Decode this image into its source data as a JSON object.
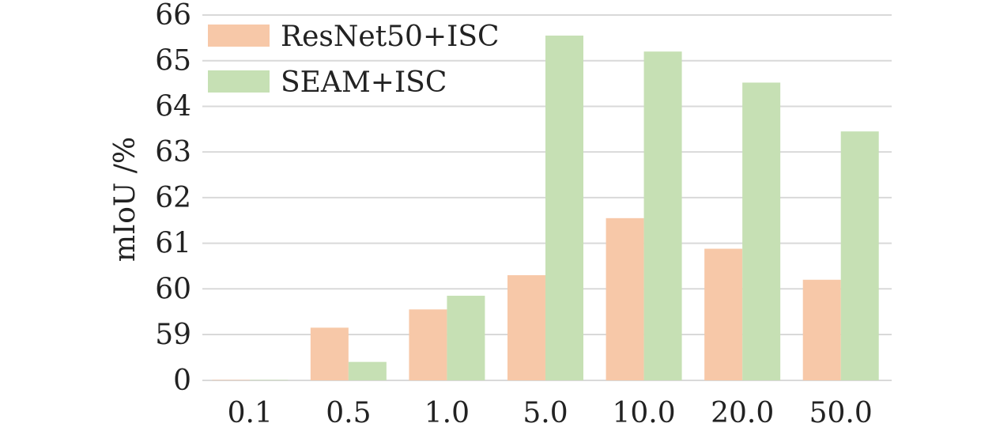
{
  "chart_data": {
    "type": "bar",
    "title": "",
    "xlabel": "",
    "ylabel": "mIoU /%",
    "categories": [
      "0.1",
      "0.5",
      "1.0",
      "5.0",
      "10.0",
      "20.0",
      "50.0"
    ],
    "y_ticks": [
      "0",
      "59",
      "60",
      "61",
      "62",
      "63",
      "64",
      "65",
      "66"
    ],
    "y_axis_note": "broken axis: first tick 0, remaining ticks 59–66",
    "series": [
      {
        "name": "ResNet50+ISC",
        "color": "#f7c8a8",
        "values": [
          0.1,
          59.15,
          59.55,
          60.3,
          61.55,
          60.88,
          60.2
        ]
      },
      {
        "name": "SEAM+ISC",
        "color": "#c6e0b4",
        "values": [
          0.1,
          58.4,
          59.85,
          65.55,
          65.2,
          64.52,
          63.45
        ]
      }
    ],
    "grid": true,
    "legend_position": "top-left"
  }
}
